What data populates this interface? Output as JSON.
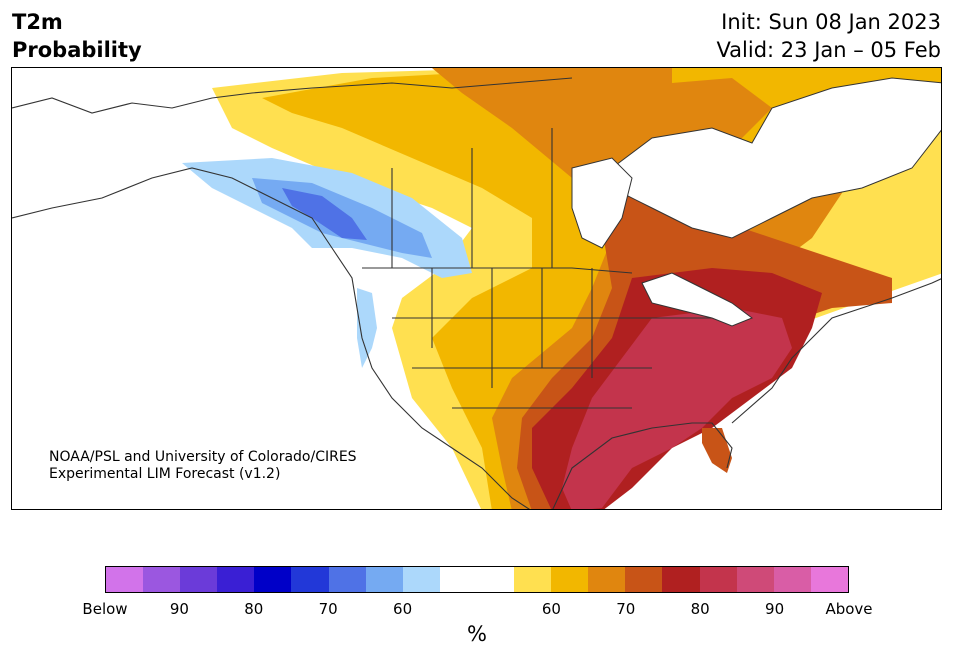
{
  "header": {
    "title_line1": "T2m",
    "title_line2": "Probability",
    "init": "Init: Sun 08 Jan 2023",
    "valid": "Valid: 23 Jan – 05 Feb"
  },
  "credit": {
    "line1": "NOAA/PSL and University of Colorado/CIRES",
    "line2": "Experimental LIM Forecast (v1.2)"
  },
  "colorbar": {
    "unit_label": "%",
    "colors": [
      "#d273ea",
      "#9b57e0",
      "#6b3bd9",
      "#3a1fd4",
      "#0000c8",
      "#2238d8",
      "#4f72e6",
      "#75aaf2",
      "#acd8fb",
      "#ffffff",
      "#ffffff",
      "#ffe050",
      "#f2b700",
      "#e0860f",
      "#c85417",
      "#b02020",
      "#c3344c",
      "#cf4a78",
      "#d95da6",
      "#e877db"
    ],
    "tick_labels": [
      "Below",
      "90",
      "80",
      "70",
      "60",
      "60",
      "70",
      "80",
      "90",
      "Above"
    ]
  },
  "map": {
    "region": "North America",
    "colors": {
      "land_background": "#ffffff",
      "light_blue": "#acd8fb",
      "mid_blue": "#75aaf2",
      "blue": "#4f72e6",
      "yellow": "#ffe050",
      "gold": "#f2b700",
      "orange": "#e0860f",
      "dark_orange": "#c85417",
      "red": "#b02020",
      "crimson": "#c3344c",
      "border": "#333333"
    }
  }
}
